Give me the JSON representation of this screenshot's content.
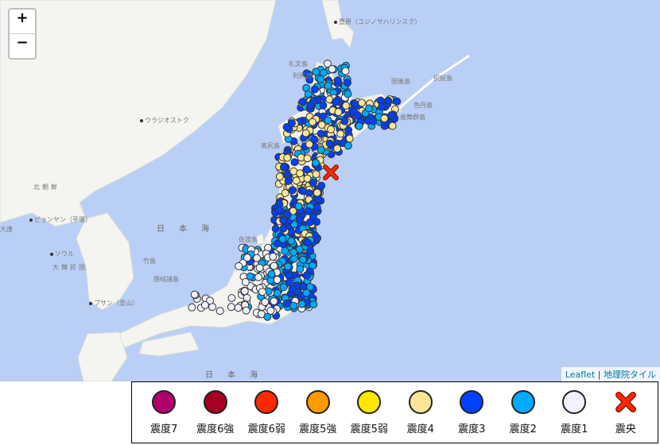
{
  "map": {
    "zoom_in": "+",
    "zoom_out": "−",
    "attribution": {
      "leaflet": "Leaflet",
      "separator": "|",
      "tiles": "地理院タイル"
    },
    "labels": {
      "sakhalin": "豊原（ユジノサハリンスク）",
      "vladivostok": "ウラジオストク",
      "north_korea": "北朝鮮",
      "pyongyang": "ピョンヤン（平壌）",
      "dalian": "大連",
      "seoul": "ソウル",
      "south_korea": "大韓民国",
      "busan": "プサン（釜山）",
      "sea_of_japan": "日本海",
      "sea_bottom": "日本海",
      "takeshima": "竹島",
      "oki": "隠岐諸島",
      "sado": "佐渡島",
      "rebun": "礼文島",
      "rishiri": "利尻島",
      "kunashiri": "国後島",
      "etorofu": "択捉島",
      "shikotan": "色丹島",
      "habomai": "歯舞群島",
      "okushiri": "奥尻島"
    }
  },
  "legend": [
    {
      "label": "震度7",
      "color": "#b0006e"
    },
    {
      "label": "震度6強",
      "color": "#a50021"
    },
    {
      "label": "震度6弱",
      "color": "#ff2800"
    },
    {
      "label": "震度5強",
      "color": "#ff9900"
    },
    {
      "label": "震度5弱",
      "color": "#ffe600"
    },
    {
      "label": "震度4",
      "color": "#fae696"
    },
    {
      "label": "震度3",
      "color": "#0041ff"
    },
    {
      "label": "震度2",
      "color": "#00aaff"
    },
    {
      "label": "震度1",
      "color": "#f2f2ff"
    },
    {
      "label": "震央",
      "color": "#ff2800",
      "icon": "x-mark"
    }
  ]
}
